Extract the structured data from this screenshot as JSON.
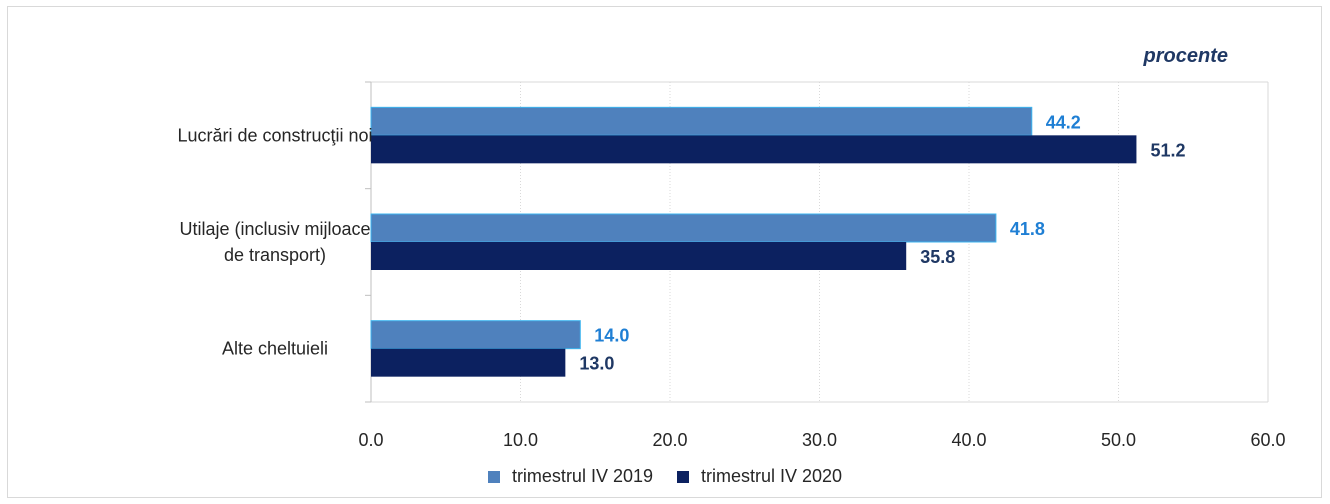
{
  "unit_label": "procente",
  "colors": {
    "series_2019": "#4f81bd",
    "series_2019_label": "#1f7fd4",
    "series_2020": "#0c2160",
    "series_2020_label": "#1f3864"
  },
  "chart_data": {
    "type": "bar",
    "orientation": "horizontal",
    "categories": [
      [
        "Lucrări de construcţii noi"
      ],
      [
        "Utilaje (inclusiv mijloace",
        "de transport)"
      ],
      [
        "Alte cheltuieli"
      ]
    ],
    "series": [
      {
        "name": "trimestrul IV 2019",
        "values": [
          44.2,
          41.8,
          14.0
        ],
        "labels": [
          "44.2",
          "41.8",
          "14.0"
        ]
      },
      {
        "name": "trimestrul IV 2020",
        "values": [
          51.2,
          35.8,
          13.0
        ],
        "labels": [
          "51.2",
          "35.8",
          "13.0"
        ]
      }
    ],
    "xlim": [
      0,
      60
    ],
    "ticks": [
      "0.0",
      "10.0",
      "20.0",
      "30.0",
      "40.0",
      "50.0",
      "60.0"
    ],
    "grid": "vertical",
    "legend_position": "bottom"
  }
}
